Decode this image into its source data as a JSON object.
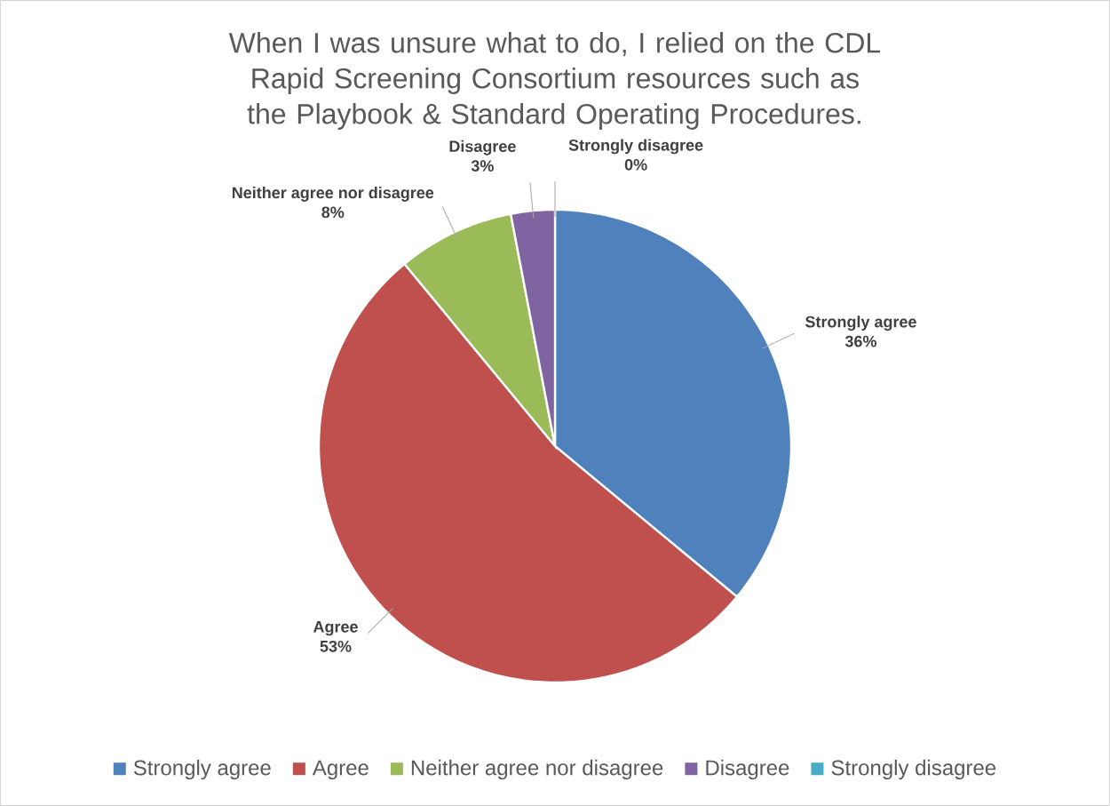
{
  "chart_data": {
    "type": "pie",
    "title": "When I was unsure what to do, I relied on the CDL Rapid Screening Consortium resources such as the Playbook & Standard Operating Procedures.",
    "categories": [
      "Strongly agree",
      "Agree",
      "Neither agree nor disagree",
      "Disagree",
      "Strongly disagree"
    ],
    "values": [
      36,
      53,
      8,
      3,
      0
    ],
    "value_labels": [
      "36%",
      "53%",
      "8%",
      "3%",
      "0%"
    ],
    "colors": [
      "#4f81bd",
      "#c0504d",
      "#9bbb59",
      "#8064a2",
      "#4bacc6"
    ],
    "legend": "bottom"
  }
}
